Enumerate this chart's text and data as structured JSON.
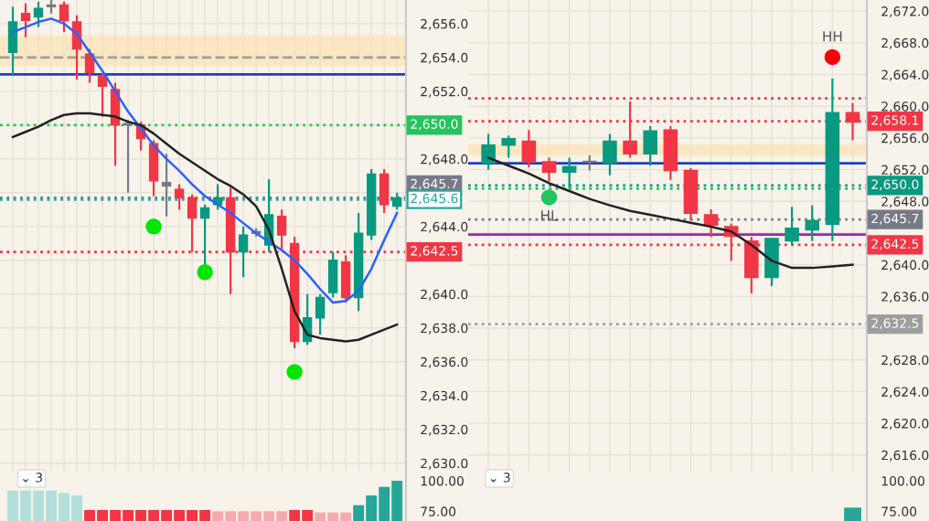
{
  "chart_data": [
    {
      "type": "candlestick",
      "tick_labels": "y",
      "grid": true,
      "categories": [
        null,
        null,
        null,
        null,
        null,
        null,
        null,
        null,
        null,
        null,
        null,
        null,
        null,
        null,
        null,
        null,
        null,
        null,
        null,
        null,
        null,
        null,
        null,
        null,
        null,
        null,
        null,
        null,
        null,
        null,
        null
      ],
      "ohlc": [
        [
          2654.3,
          2657.0,
          2652.9,
          2656.1
        ],
        [
          2656.6,
          2657.2,
          2655.2,
          2656.2
        ],
        [
          2656.4,
          2657.3,
          2655.8,
          2656.9
        ],
        [
          2657.0,
          2657.4,
          2656.6,
          2657.1
        ],
        [
          2657.1,
          2657.3,
          2655.5,
          2656.2
        ],
        [
          2656.1,
          2656.5,
          2652.7,
          2654.5
        ],
        [
          2654.2,
          2654.5,
          2652.5,
          2653.1
        ],
        [
          2652.9,
          2653.1,
          2650.5,
          2652.3
        ],
        [
          2652.1,
          2652.5,
          2647.6,
          2650.0
        ],
        [
          2650.0,
          2650.3,
          2646.0,
          2650.1
        ],
        [
          2650.0,
          2650.2,
          2648.5,
          2649.2
        ],
        [
          2648.9,
          2649.1,
          2645.8,
          2646.7
        ],
        [
          2646.6,
          2648.3,
          2644.6,
          2646.4
        ],
        [
          2646.2,
          2646.5,
          2645.0,
          2645.7
        ],
        [
          2645.7,
          2645.9,
          2642.5,
          2644.5
        ],
        [
          2644.5,
          2645.3,
          2641.5,
          2645.1
        ],
        [
          2645.3,
          2646.5,
          2645.0,
          2645.7
        ],
        [
          2645.7,
          2646.3,
          2640.0,
          2642.5
        ],
        [
          2642.5,
          2644.0,
          2641.0,
          2643.5
        ],
        [
          2643.6,
          2643.9,
          2643.4,
          2643.7
        ],
        [
          2642.9,
          2646.8,
          2642.5,
          2644.7
        ],
        [
          2644.6,
          2645.0,
          2642.6,
          2643.5
        ],
        [
          2643.0,
          2643.4,
          2636.8,
          2637.2
        ],
        [
          2637.2,
          2640.0,
          2637.0,
          2638.6
        ],
        [
          2638.6,
          2640.0,
          2637.6,
          2639.8
        ],
        [
          2640.1,
          2642.5,
          2639.8,
          2642.0
        ],
        [
          2641.9,
          2642.3,
          2639.5,
          2639.8
        ],
        [
          2639.8,
          2644.8,
          2639.0,
          2643.6
        ],
        [
          2643.5,
          2647.4,
          2643.2,
          2647.1
        ],
        [
          2647.1,
          2647.4,
          2644.8,
          2645.3
        ],
        [
          2645.2,
          2646.0,
          2645.0,
          2645.7
        ]
      ],
      "colors": [
        "#089981",
        "#f23645",
        "#089981",
        "#787b86",
        "#f23645",
        "#f23645",
        "#f23645",
        "#f23645",
        "#f23645",
        "#787b86",
        "#f23645",
        "#f23645",
        "#787b86",
        "#f23645",
        "#f23645",
        "#089981",
        "#089981",
        "#f23645",
        "#089981",
        "#787b86",
        "#089981",
        "#f23645",
        "#f23645",
        "#089981",
        "#089981",
        "#089981",
        "#f23645",
        "#089981",
        "#089981",
        "#f23645",
        "#089981"
      ],
      "series": [
        {
          "type": "line",
          "color": "#2962ff",
          "values": [
            2655.5,
            2655.8,
            2656.1,
            2656.3,
            2656.0,
            2655.4,
            2654.3,
            2653.2,
            2652.0,
            2650.8,
            2649.8,
            2648.8,
            2648.0,
            2647.3,
            2646.5,
            2645.8,
            2645.3,
            2644.8,
            2644.2,
            2643.6,
            2643.1,
            2642.6,
            2642.0,
            2641.2,
            2640.3,
            2639.5,
            2639.6,
            2640.2,
            2641.5,
            2643.2,
            2644.8
          ]
        },
        {
          "type": "line",
          "color": "#222222",
          "values": [
            2649.3,
            2649.6,
            2649.9,
            2650.3,
            2650.6,
            2650.7,
            2650.7,
            2650.6,
            2650.5,
            2650.2,
            2650.0,
            2649.5,
            2648.9,
            2648.3,
            2647.8,
            2647.3,
            2646.8,
            2646.4,
            2645.9,
            2645.2,
            2643.8,
            2641.5,
            2639.0,
            2637.6,
            2637.4,
            2637.3,
            2637.2,
            2637.3,
            2637.6,
            2637.9,
            2638.2
          ]
        },
        {
          "type": "scatter",
          "color": "#00e600",
          "values": [
            null,
            null,
            null,
            null,
            null,
            null,
            null,
            null,
            null,
            null,
            null,
            2644.0,
            null,
            null,
            null,
            2641.3,
            null,
            null,
            null,
            null,
            null,
            null,
            2635.4,
            null,
            null,
            null,
            null,
            null,
            null,
            null,
            null
          ]
        }
      ],
      "bands": [
        {
          "axis": "y",
          "from": 2653.5,
          "to": 2655.3,
          "color": "#fbe3b0"
        }
      ],
      "ref_lines": [
        {
          "axis": "y",
          "value": 2653.0,
          "color": "#1e3fbf",
          "line_style": "solid"
        },
        {
          "axis": "y",
          "value": 2654.0,
          "color": "#9e9e9e",
          "line_style": "dashed"
        },
        {
          "axis": "y",
          "value": 2650.0,
          "color": "#22c55e",
          "line_style": "dotted",
          "label": "2,650.0"
        },
        {
          "axis": "y",
          "value": 2645.7,
          "color": "#787b86",
          "line_style": "dotted",
          "label": "2,645.7"
        },
        {
          "axis": "y",
          "value": 2645.6,
          "color": "#26a69a",
          "line_style": "dotted",
          "label": "2,645.6"
        },
        {
          "axis": "y",
          "value": 2642.5,
          "color": "#f23645",
          "line_style": "dotted",
          "label": "2,642.5"
        }
      ],
      "ylim": [
        2629.5,
        2657.4
      ],
      "yticks": [
        {
          "value": 2630,
          "label": "2,630.0"
        },
        {
          "value": 2632,
          "label": "2,632.0"
        },
        {
          "value": 2634,
          "label": "2,634.0"
        },
        {
          "value": 2636,
          "label": "2,636.0"
        },
        {
          "value": 2638,
          "label": "2,638.0"
        },
        {
          "value": 2640,
          "label": "2,640.0"
        },
        {
          "value": 2642,
          "label": null
        },
        {
          "value": 2644,
          "label": "2,644.0"
        },
        {
          "value": 2646,
          "label": null
        },
        {
          "value": 2648,
          "label": "2,648.0"
        },
        {
          "value": 2650,
          "label": null
        },
        {
          "value": 2652,
          "label": "2,652.0"
        },
        {
          "value": 2654,
          "label": "2,654.0"
        },
        {
          "value": 2656,
          "label": "2,656.0"
        }
      ]
    },
    {
      "type": "candlestick",
      "tick_labels": "y",
      "grid": true,
      "categories": [
        null,
        null,
        null,
        null,
        null,
        null,
        null,
        null,
        null,
        null,
        null,
        null,
        null,
        null,
        null,
        null,
        null,
        null,
        null
      ],
      "ohlc": [
        [
          2652.8,
          2656.5,
          2652.0,
          2655.1
        ],
        [
          2655.1,
          2656.3,
          2653.5,
          2655.9
        ],
        [
          2655.6,
          2657.0,
          2652.3,
          2653.0
        ],
        [
          2653.0,
          2653.5,
          2650.5,
          2651.7
        ],
        [
          2651.7,
          2653.5,
          2649.6,
          2652.4
        ],
        [
          2653.0,
          2653.8,
          2651.9,
          2653.0
        ],
        [
          2652.8,
          2656.5,
          2651.3,
          2655.6
        ],
        [
          2655.6,
          2660.6,
          2653.5,
          2654.0
        ],
        [
          2654.0,
          2657.5,
          2652.5,
          2656.9
        ],
        [
          2657.0,
          2657.5,
          2650.7,
          2651.9
        ],
        [
          2651.9,
          2652.2,
          2645.6,
          2646.5
        ],
        [
          2646.3,
          2647.0,
          2643.5,
          2645.0
        ],
        [
          2644.8,
          2645.2,
          2640.5,
          2643.6
        ],
        [
          2643.0,
          2643.5,
          2636.4,
          2638.4
        ],
        [
          2638.4,
          2643.4,
          2637.3,
          2643.3
        ],
        [
          2643.0,
          2647.3,
          2642.5,
          2644.6
        ],
        [
          2644.4,
          2647.5,
          2643.0,
          2645.6
        ],
        [
          2645.1,
          2663.5,
          2643.0,
          2659.2
        ],
        [
          2659.2,
          2660.4,
          2655.7,
          2658.0
        ]
      ],
      "colors": [
        "#089981",
        "#089981",
        "#f23645",
        "#f23645",
        "#089981",
        "#787b86",
        "#089981",
        "#f23645",
        "#089981",
        "#f23645",
        "#f23645",
        "#f23645",
        "#f23645",
        "#f23645",
        "#089981",
        "#089981",
        "#089981",
        "#089981",
        "#f23645"
      ],
      "series": [
        {
          "type": "line",
          "color": "#222222",
          "values": [
            2653.5,
            2652.5,
            2651.5,
            2650.3,
            2649.3,
            2648.3,
            2647.5,
            2646.8,
            2646.3,
            2645.8,
            2645.3,
            2644.8,
            2644.2,
            2642.5,
            2640.5,
            2639.6,
            2639.6,
            2639.8,
            2640.0
          ]
        },
        {
          "type": "scatter",
          "color": "#ff0000",
          "values": [
            null,
            null,
            null,
            null,
            null,
            null,
            null,
            null,
            null,
            null,
            null,
            null,
            null,
            null,
            null,
            null,
            null,
            2666.2,
            null
          ],
          "value_labels": [
            null,
            null,
            null,
            null,
            null,
            null,
            null,
            null,
            null,
            null,
            null,
            null,
            null,
            null,
            null,
            null,
            null,
            "HH",
            null
          ]
        },
        {
          "type": "scatter",
          "color": "#22c55e",
          "values": [
            null,
            null,
            null,
            2648.5,
            null,
            null,
            null,
            null,
            null,
            null,
            null,
            null,
            null,
            null,
            null,
            null,
            null,
            null,
            null
          ],
          "value_labels": [
            null,
            null,
            null,
            "HL",
            null,
            null,
            null,
            null,
            null,
            null,
            null,
            null,
            null,
            null,
            null,
            null,
            null,
            null,
            null
          ]
        }
      ],
      "bands": [
        {
          "axis": "y",
          "from": 2653.8,
          "to": 2655.2,
          "color": "#fbe3b0"
        }
      ],
      "ref_lines": [
        {
          "axis": "y",
          "value": 2652.8,
          "color": "#1e3fbf",
          "line_style": "solid"
        },
        {
          "axis": "y",
          "value": 2661.0,
          "color": "#f23645",
          "line_style": "dotted"
        },
        {
          "axis": "y",
          "value": 2649.6,
          "color": "#22c55e",
          "line_style": "dotted"
        },
        {
          "axis": "y",
          "value": 2643.8,
          "color": "#9c27b0",
          "line_style": "solid"
        },
        {
          "axis": "y",
          "value": 2658.1,
          "color": "#f23645",
          "line_style": "dotted",
          "label": "2,658.1"
        },
        {
          "axis": "y",
          "value": 2650.0,
          "color": "#089981",
          "line_style": "dotted",
          "label": "2,650.0"
        },
        {
          "axis": "y",
          "value": 2645.7,
          "color": "#787b86",
          "line_style": "dotted",
          "label": "2,645.7"
        },
        {
          "axis": "y",
          "value": 2642.5,
          "color": "#f23645",
          "line_style": "dotted",
          "label": "2,642.5"
        },
        {
          "axis": "y",
          "value": 2632.5,
          "color": "#9e9e9e",
          "line_style": "dotted",
          "label": "2,632.5"
        }
      ],
      "ylim": [
        2613.9,
        2673.4
      ],
      "yticks": [
        {
          "value": 2616,
          "label": "2,616.0"
        },
        {
          "value": 2620,
          "label": "2,620.0"
        },
        {
          "value": 2624,
          "label": "2,624.0"
        },
        {
          "value": 2628,
          "label": "2,628.0"
        },
        {
          "value": 2632,
          "label": null
        },
        {
          "value": 2636,
          "label": "2,636.0"
        },
        {
          "value": 2640,
          "label": "2,640.0"
        },
        {
          "value": 2644,
          "label": null
        },
        {
          "value": 2648,
          "label": "2,648.0"
        },
        {
          "value": 2652,
          "label": "2,652.0"
        },
        {
          "value": 2656,
          "label": "2,656.0"
        },
        {
          "value": 2660,
          "label": "2,660.0"
        },
        {
          "value": 2664,
          "label": "2,664.0"
        },
        {
          "value": 2668,
          "label": "2,668.0"
        },
        {
          "value": 2672,
          "label": "2,672.0"
        }
      ]
    },
    {
      "type": "bar",
      "tick_labels": "y",
      "categories": [
        null,
        null,
        null,
        null,
        null,
        null,
        null,
        null,
        null,
        null,
        null,
        null,
        null,
        null,
        null,
        null,
        null,
        null,
        null,
        null,
        null,
        null,
        null,
        null,
        null,
        null,
        null,
        null,
        null,
        null,
        null
      ],
      "values": [
        92,
        92,
        92,
        92,
        90,
        88,
        76,
        76,
        76,
        76,
        76,
        76,
        76,
        76,
        76,
        76,
        75,
        75,
        75,
        75,
        75,
        75,
        76,
        76,
        74,
        74,
        74,
        80,
        88,
        95,
        100
      ],
      "colors": [
        "#b2dfdb",
        "#b2dfdb",
        "#b2dfdb",
        "#b2dfdb",
        "#b2dfdb",
        "#b2dfdb",
        "#f23645",
        "#f23645",
        "#f23645",
        "#f23645",
        "#f23645",
        "#f23645",
        "#f23645",
        "#f23645",
        "#f23645",
        "#f23645",
        "#f7a9b0",
        "#f7a9b0",
        "#f7a9b0",
        "#f7a9b0",
        "#f7a9b0",
        "#f7a9b0",
        "#f23645",
        "#f23645",
        "#f7a9b0",
        "#f7a9b0",
        "#f7a9b0",
        "#26a69a",
        "#26a69a",
        "#26a69a",
        "#26a69a"
      ],
      "annotations": [
        "⌄ 3"
      ],
      "ylim": [
        67,
        107.5
      ],
      "yticks": [
        {
          "value": 75,
          "label": "75.00"
        },
        {
          "value": 100,
          "label": "100.00"
        }
      ]
    },
    {
      "type": "bar",
      "tick_labels": "y",
      "categories": [
        null,
        null,
        null,
        null,
        null,
        null,
        null,
        null,
        null,
        null,
        null,
        null,
        null,
        null,
        null,
        null,
        null,
        null,
        null
      ],
      "values": [
        null,
        null,
        null,
        null,
        null,
        null,
        null,
        null,
        null,
        null,
        null,
        null,
        null,
        null,
        null,
        null,
        null,
        null,
        78
      ],
      "colors": [
        "#26a69a",
        "#26a69a",
        "#26a69a",
        "#26a69a",
        "#26a69a",
        "#26a69a",
        "#26a69a",
        "#26a69a",
        "#26a69a",
        "#26a69a",
        "#26a69a",
        "#26a69a",
        "#26a69a",
        "#26a69a",
        "#26a69a",
        "#26a69a",
        "#26a69a",
        "#26a69a",
        "#26a69a"
      ],
      "annotations": [
        "⌄ 3"
      ],
      "ylim": [
        67,
        107.5
      ],
      "yticks": [
        {
          "value": 75,
          "label": "75.00"
        },
        {
          "value": 100,
          "label": "100.00"
        }
      ]
    }
  ]
}
